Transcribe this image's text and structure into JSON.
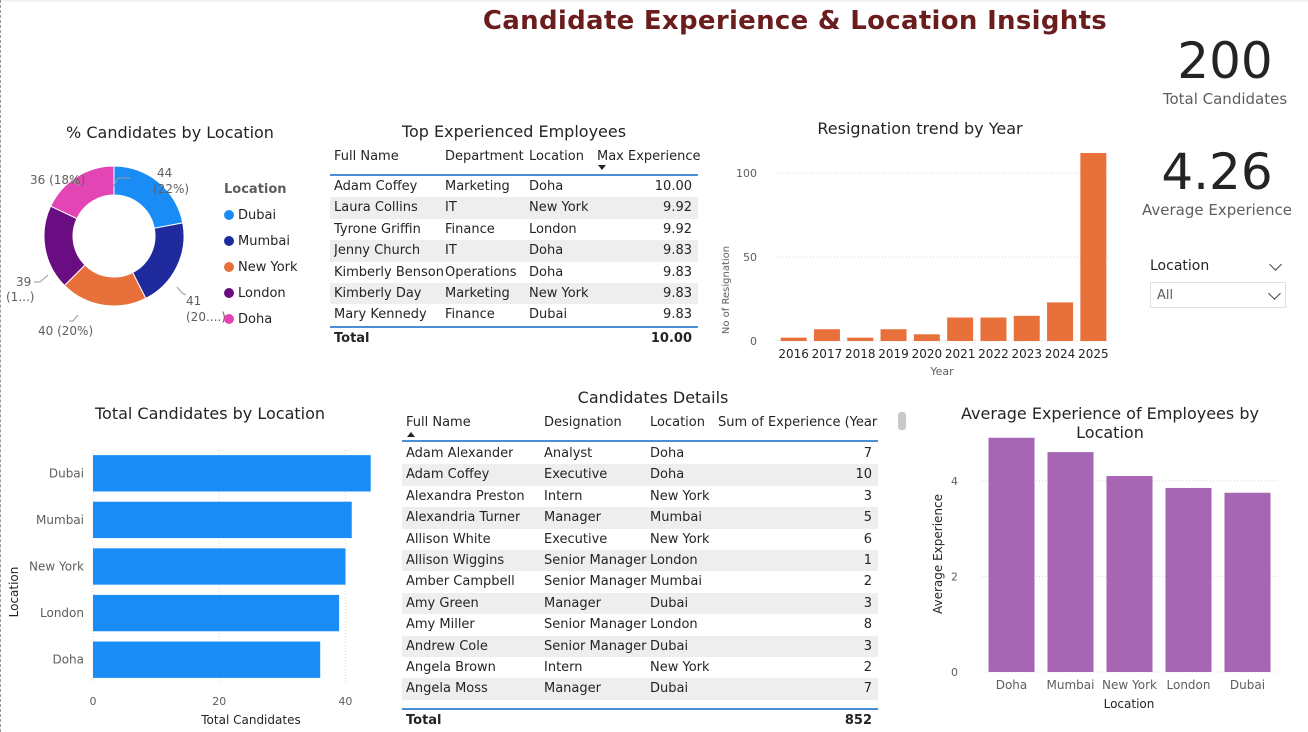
{
  "title": "Candidate Experience & Location Insights",
  "cards": {
    "total": {
      "value": "200",
      "label": "Total Candidates"
    },
    "avg": {
      "value": "4.26",
      "label": "Average Experience"
    }
  },
  "slicer": {
    "title": "Location",
    "value": "All"
  },
  "colors": {
    "title": "#6b1d1d",
    "resignation_bar": "#e8703a",
    "location_bar": "#1a8cf5",
    "avg_bar": "#a666b3",
    "table_accent": "#4a8ed6"
  },
  "donut": {
    "title": "% Candidates by Location",
    "legend_title": "Location",
    "labels": {
      "Dubai": [
        "44",
        "(22%)"
      ],
      "Mumbai": [
        "41",
        "(20....)"
      ],
      "New York": [
        "40 (20%)"
      ],
      "London": [
        "39",
        "(1...)"
      ],
      "Doha": [
        "36 (18%)"
      ]
    }
  },
  "top_table": {
    "title": "Top Experienced Employees",
    "headers": [
      "Full Name",
      "Department",
      "Location",
      "Max Experience"
    ],
    "rows": [
      [
        "Adam Coffey",
        "Marketing",
        "Doha",
        "10.00"
      ],
      [
        "Laura Collins",
        "IT",
        "New York",
        "9.92"
      ],
      [
        "Tyrone Griffin",
        "Finance",
        "London",
        "9.92"
      ],
      [
        "Jenny Church",
        "IT",
        "Doha",
        "9.83"
      ],
      [
        "Kimberly Benson",
        "Operations",
        "Doha",
        "9.83"
      ],
      [
        "Kimberly Day",
        "Marketing",
        "New York",
        "9.83"
      ],
      [
        "Mary Kennedy",
        "Finance",
        "Dubai",
        "9.83"
      ]
    ],
    "total_label": "Total",
    "total_value": "10.00"
  },
  "details_table": {
    "title": "Candidates Details",
    "headers": [
      "Full Name",
      "Designation",
      "Location",
      "Sum of Experience (Years)"
    ],
    "rows": [
      [
        "Adam Alexander",
        "Analyst",
        "Doha",
        "7"
      ],
      [
        "Adam Coffey",
        "Executive",
        "Doha",
        "10"
      ],
      [
        "Alexandra Preston",
        "Intern",
        "New York",
        "3"
      ],
      [
        "Alexandria Turner",
        "Manager",
        "Mumbai",
        "5"
      ],
      [
        "Allison White",
        "Executive",
        "New York",
        "6"
      ],
      [
        "Allison Wiggins",
        "Senior Manager",
        "London",
        "1"
      ],
      [
        "Amber Campbell",
        "Senior Manager",
        "Mumbai",
        "2"
      ],
      [
        "Amy Green",
        "Manager",
        "Dubai",
        "3"
      ],
      [
        "Amy Miller",
        "Senior Manager",
        "London",
        "8"
      ],
      [
        "Andrew Cole",
        "Senior Manager",
        "Dubai",
        "3"
      ],
      [
        "Angela Brown",
        "Intern",
        "New York",
        "2"
      ],
      [
        "Angela Moss",
        "Manager",
        "Dubai",
        "7"
      ]
    ],
    "total_label": "Total",
    "total_value": "852"
  },
  "chart_data": [
    {
      "id": "pct_by_location",
      "type": "pie",
      "title": "% Candidates by Location",
      "legend_title": "Location",
      "categories": [
        "Dubai",
        "Mumbai",
        "New York",
        "London",
        "Doha"
      ],
      "values": [
        44,
        41,
        40,
        39,
        36
      ],
      "colors": [
        "#1a8cf5",
        "#1f2b9c",
        "#e8703a",
        "#6a0d83",
        "#e445b4"
      ]
    },
    {
      "id": "resignation_trend",
      "type": "bar",
      "title": "Resignation trend by Year",
      "xlabel": "Year",
      "ylabel": "No of Resignation",
      "categories": [
        "2016",
        "2017",
        "2018",
        "2019",
        "2020",
        "2021",
        "2022",
        "2023",
        "2024",
        "2025"
      ],
      "values": [
        2,
        7,
        2,
        7,
        4,
        14,
        14,
        15,
        23,
        112
      ],
      "ylim": [
        0,
        115
      ],
      "yticks": [
        0,
        50,
        100
      ]
    },
    {
      "id": "total_by_location",
      "type": "bar",
      "orientation": "horizontal",
      "title": "Total Candidates by Location",
      "xlabel": "Total Candidates",
      "ylabel": "Location",
      "categories": [
        "Dubai",
        "Mumbai",
        "New York",
        "London",
        "Doha"
      ],
      "values": [
        44,
        41,
        40,
        39,
        36
      ],
      "xlim": [
        0,
        45
      ],
      "xticks": [
        0,
        20,
        40
      ]
    },
    {
      "id": "avg_exp_by_location",
      "type": "bar",
      "title": "Average Experience of Employees by Location",
      "xlabel": "Location",
      "ylabel": "Average Experience",
      "categories": [
        "Doha",
        "Mumbai",
        "New York",
        "London",
        "Dubai"
      ],
      "values": [
        4.9,
        4.6,
        4.1,
        3.85,
        3.75
      ],
      "ylim": [
        0,
        5
      ],
      "yticks": [
        0,
        2,
        4
      ]
    }
  ]
}
